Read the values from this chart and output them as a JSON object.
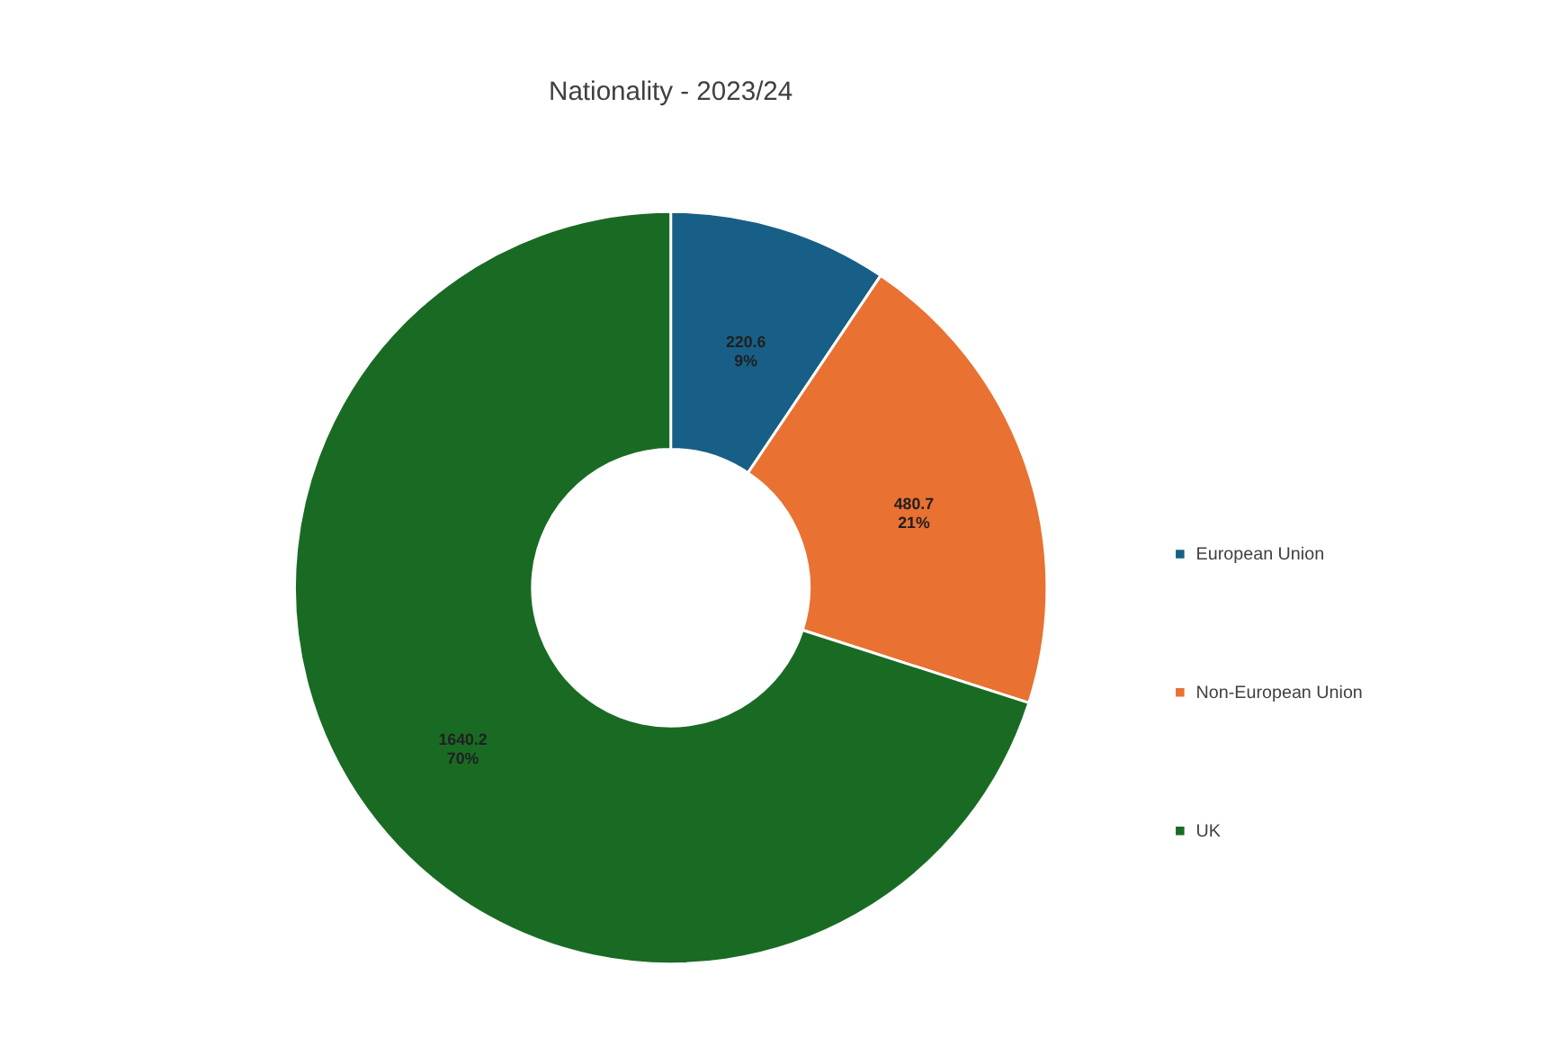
{
  "chart_data": {
    "type": "donut",
    "title": "Nationality - 2023/24",
    "categories": [
      "European Union",
      "Non-European Union",
      "UK"
    ],
    "values": [
      220.6,
      480.7,
      1640.2
    ],
    "colors": [
      "#175f86",
      "#e97132",
      "#196b24"
    ],
    "value_labels": [
      "220.6\n9%",
      "480.7\n21%",
      "1640.2\n70%"
    ],
    "legend": "right"
  }
}
